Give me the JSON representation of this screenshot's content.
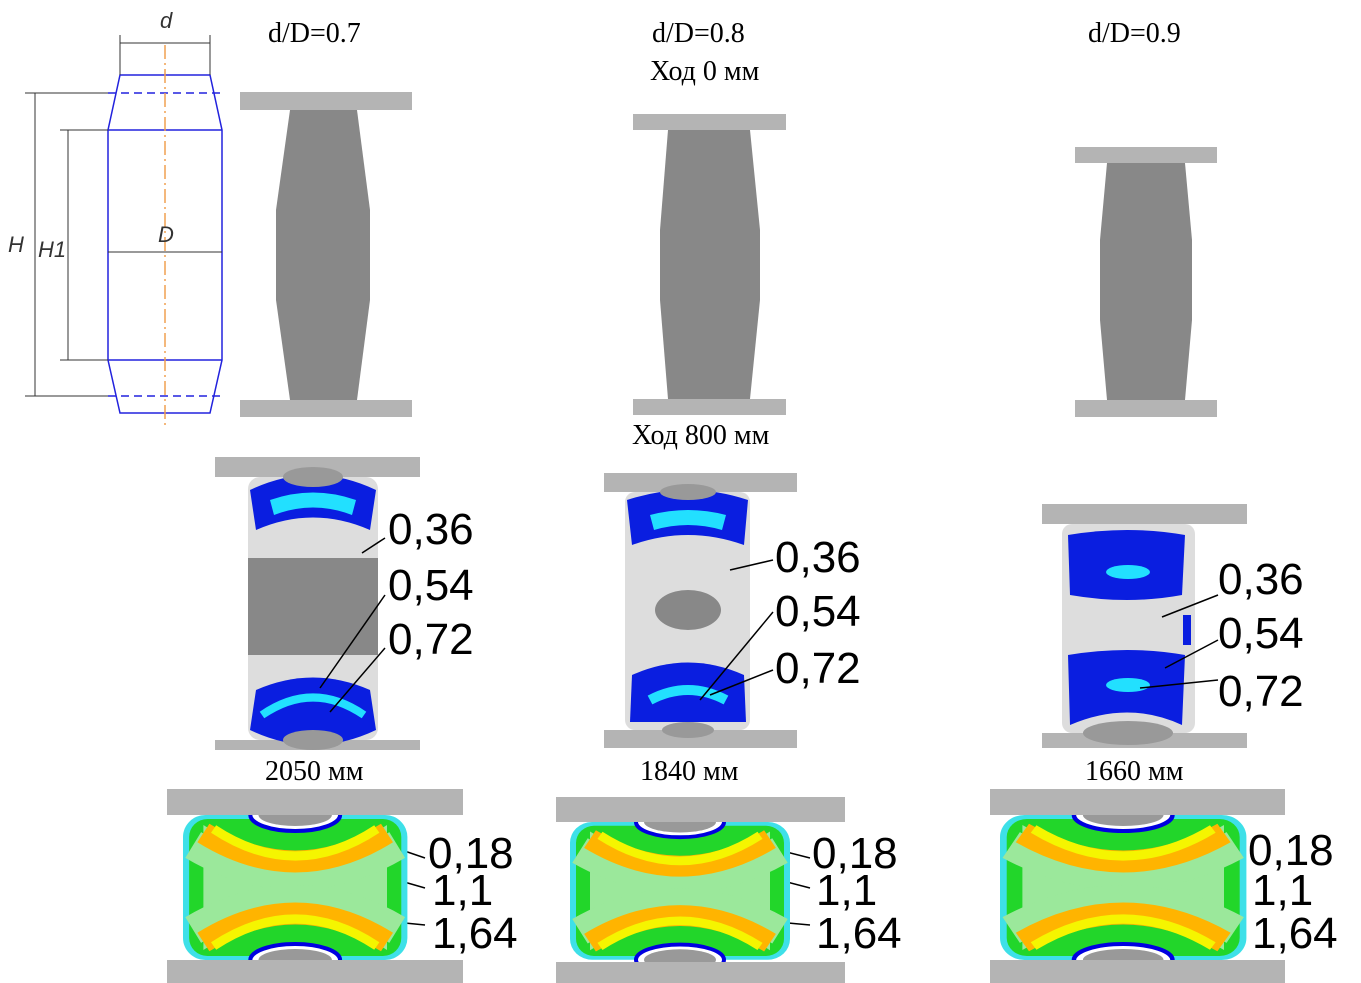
{
  "drawing": {
    "labels": [
      "d",
      "D",
      "H",
      "H1"
    ]
  },
  "captions": [
    "Ход 0 мм",
    "Ход 800 мм"
  ],
  "columns": [
    {
      "title": "d/D=0.7",
      "stage2_labels": [
        "0,36",
        "0,54",
        "0,72"
      ],
      "final": "2050 мм",
      "stage3_labels": [
        "0,18",
        "1,1",
        "1,64"
      ]
    },
    {
      "title": "d/D=0.8",
      "stage2_labels": [
        "0,36",
        "0,54",
        "0,72"
      ],
      "final": "1840 мм",
      "stage3_labels": [
        "0,18",
        "1,1",
        "1,64"
      ]
    },
    {
      "title": "d/D=0.9",
      "stage2_labels": [
        "0,36",
        "0,54",
        "0,72"
      ],
      "final": "1660 мм",
      "stage3_labels": [
        "0,18",
        "1,1",
        "1,64"
      ]
    }
  ]
}
